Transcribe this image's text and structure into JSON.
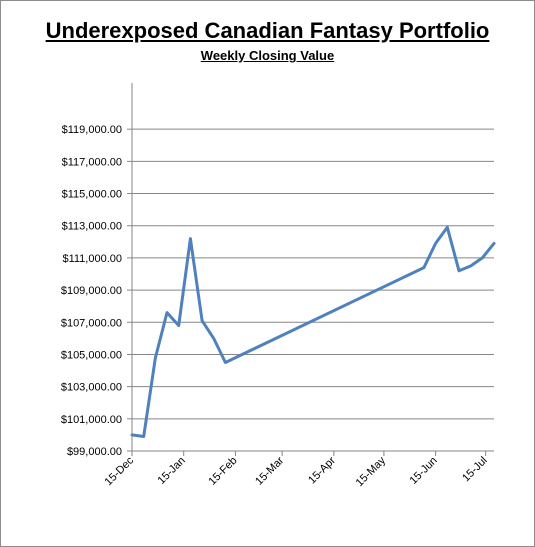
{
  "chart_data": {
    "type": "line",
    "title": "Underexposed Canadian Fantasy Portfolio",
    "subtitle": "Weekly Closing Value",
    "xlabel": "",
    "ylabel": "",
    "x_ticks": [
      "15-Dec",
      "15-Jan",
      "15-Feb",
      "15-Mar",
      "15-Apr",
      "15-May",
      "15-Jun",
      "15-Jul"
    ],
    "y_ticks": [
      "$99,000.00",
      "$101,000.00",
      "$103,000.00",
      "$105,000.00",
      "$107,000.00",
      "$109,000.00",
      "$111,000.00",
      "$113,000.00",
      "$115,000.00",
      "$117,000.00",
      "$119,000.00"
    ],
    "ylim": [
      99000,
      121000
    ],
    "xlim": [
      "2009-12-15",
      "2010-07-20"
    ],
    "grid": true,
    "line_color": "#4f81bd",
    "series": [
      {
        "points": [
          {
            "x": "2009-12-15",
            "y": 100000
          },
          {
            "x": "2009-12-22",
            "y": 99900
          },
          {
            "x": "2009-12-29",
            "y": 104800
          },
          {
            "x": "2010-01-05",
            "y": 107600
          },
          {
            "x": "2010-01-12",
            "y": 106800
          },
          {
            "x": "2010-01-19",
            "y": 112200
          },
          {
            "x": "2010-01-26",
            "y": 107100
          },
          {
            "x": "2010-02-02",
            "y": 106000
          },
          {
            "x": "2010-02-09",
            "y": 104500
          },
          {
            "x": "2010-06-08",
            "y": 110400
          },
          {
            "x": "2010-06-15",
            "y": 111900
          },
          {
            "x": "2010-06-22",
            "y": 112900
          },
          {
            "x": "2010-06-29",
            "y": 110200
          },
          {
            "x": "2010-07-06",
            "y": 110500
          },
          {
            "x": "2010-07-13",
            "y": 111000
          },
          {
            "x": "2010-07-20",
            "y": 111900
          }
        ]
      }
    ]
  }
}
